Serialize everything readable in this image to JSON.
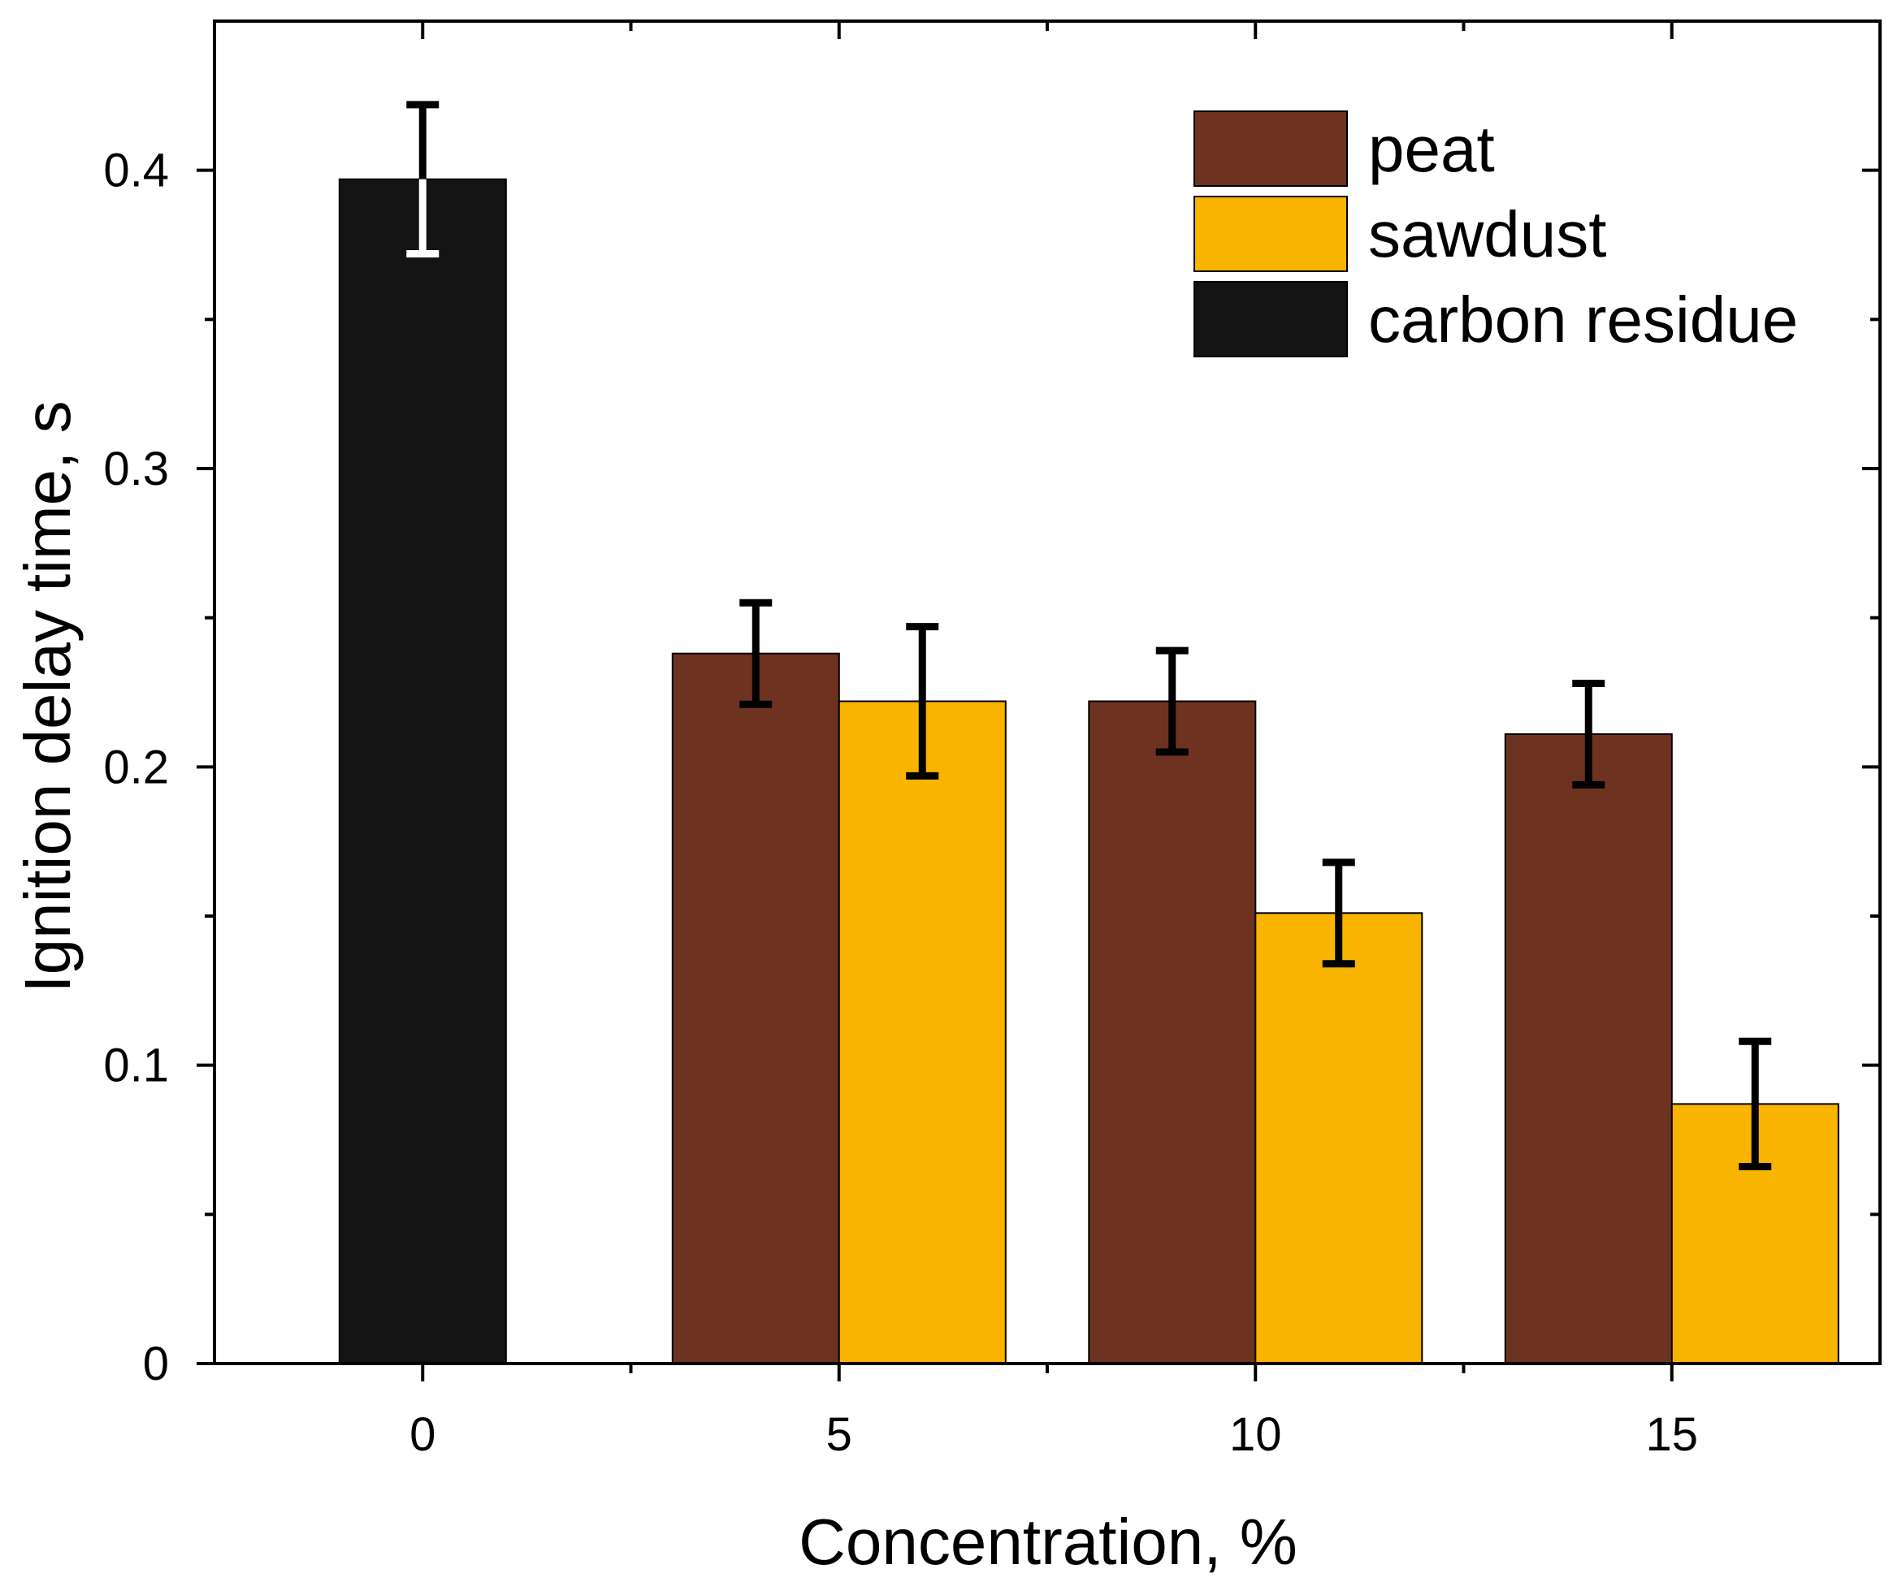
{
  "chart_data": {
    "type": "bar",
    "title": "",
    "xlabel": "Concentration, %",
    "ylabel": "Ignition delay time, s",
    "xlim": [
      -2.5,
      17.5
    ],
    "ylim": [
      0,
      0.45
    ],
    "x_ticks": [
      0,
      5,
      10,
      15
    ],
    "x_minor_ticks": [
      2.5,
      7.5,
      12.5
    ],
    "y_ticks": [
      0,
      0.1,
      0.2,
      0.3,
      0.4
    ],
    "y_tick_labels": [
      "0",
      "0.1",
      "0.2",
      "0.3",
      "0.4"
    ],
    "y_minor_ticks": [
      0.05,
      0.15,
      0.25,
      0.35
    ],
    "grid": false,
    "legend_position": "top-right",
    "series": [
      {
        "name": "peat",
        "color": "#6e3220",
        "points": [
          {
            "x": 5,
            "value": 0.238,
            "error": 0.017
          },
          {
            "x": 10,
            "value": 0.222,
            "error": 0.017
          },
          {
            "x": 15,
            "value": 0.211,
            "error": 0.017
          }
        ]
      },
      {
        "name": "sawdust",
        "color": "#f9b400",
        "points": [
          {
            "x": 5,
            "value": 0.222,
            "error": 0.025
          },
          {
            "x": 10,
            "value": 0.151,
            "error": 0.017
          },
          {
            "x": 15,
            "value": 0.087,
            "error": 0.021
          }
        ]
      },
      {
        "name": "carbon residue",
        "color": "#141414",
        "points": [
          {
            "x": 0,
            "value": 0.397,
            "error": 0.025
          }
        ]
      }
    ]
  }
}
